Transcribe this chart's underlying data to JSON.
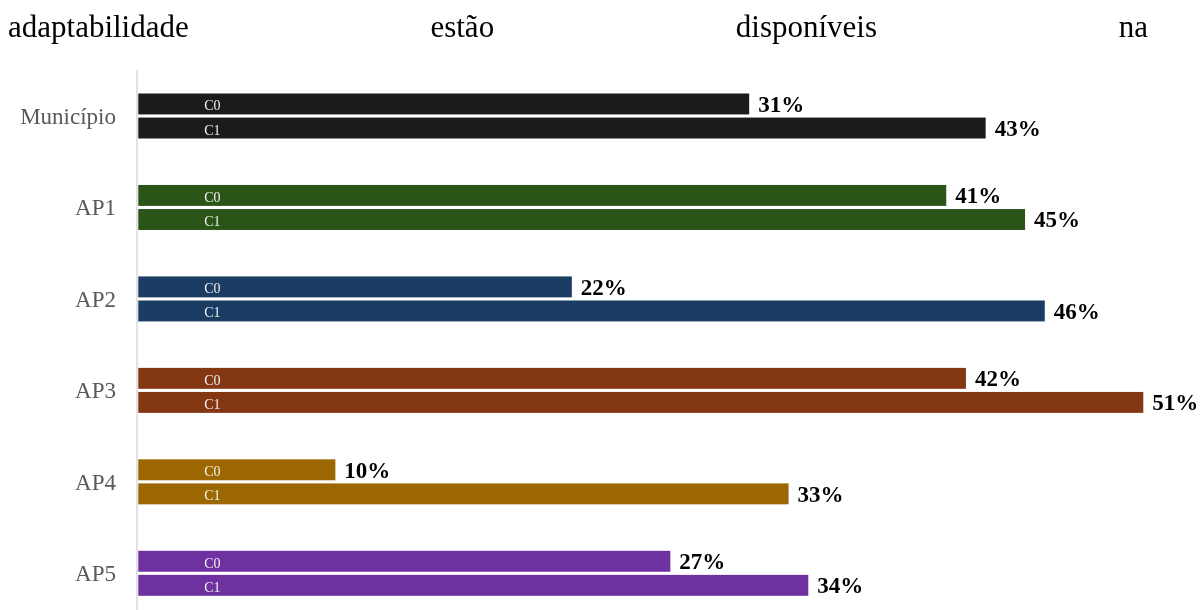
{
  "chart_data": {
    "type": "bar",
    "orientation": "horizontal",
    "title": "adaptabilidade estão disponíveis na",
    "categories": [
      "Município",
      "AP1",
      "AP2",
      "AP3",
      "AP4",
      "AP5"
    ],
    "series": [
      {
        "name": "C0",
        "colors": [
          "#1b1b1b",
          "#2a5418",
          "#1b3d63",
          "#843713",
          "#9c6600",
          "#7031a0"
        ],
        "values": [
          31,
          41,
          22,
          42,
          10,
          27
        ],
        "value_labels": [
          "31%",
          "41%",
          "22%",
          "42%",
          "10%",
          "27%"
        ]
      },
      {
        "name": "C1",
        "colors": [
          "#1b1b1b",
          "#2a5418",
          "#1b3d63",
          "#843713",
          "#9c6600",
          "#7031a0"
        ],
        "values": [
          43,
          45,
          46,
          51,
          33,
          34
        ],
        "value_labels": [
          "43%",
          "45%",
          "46%",
          "51%",
          "33%",
          "34%"
        ]
      }
    ],
    "tick_labels": "y"
  }
}
